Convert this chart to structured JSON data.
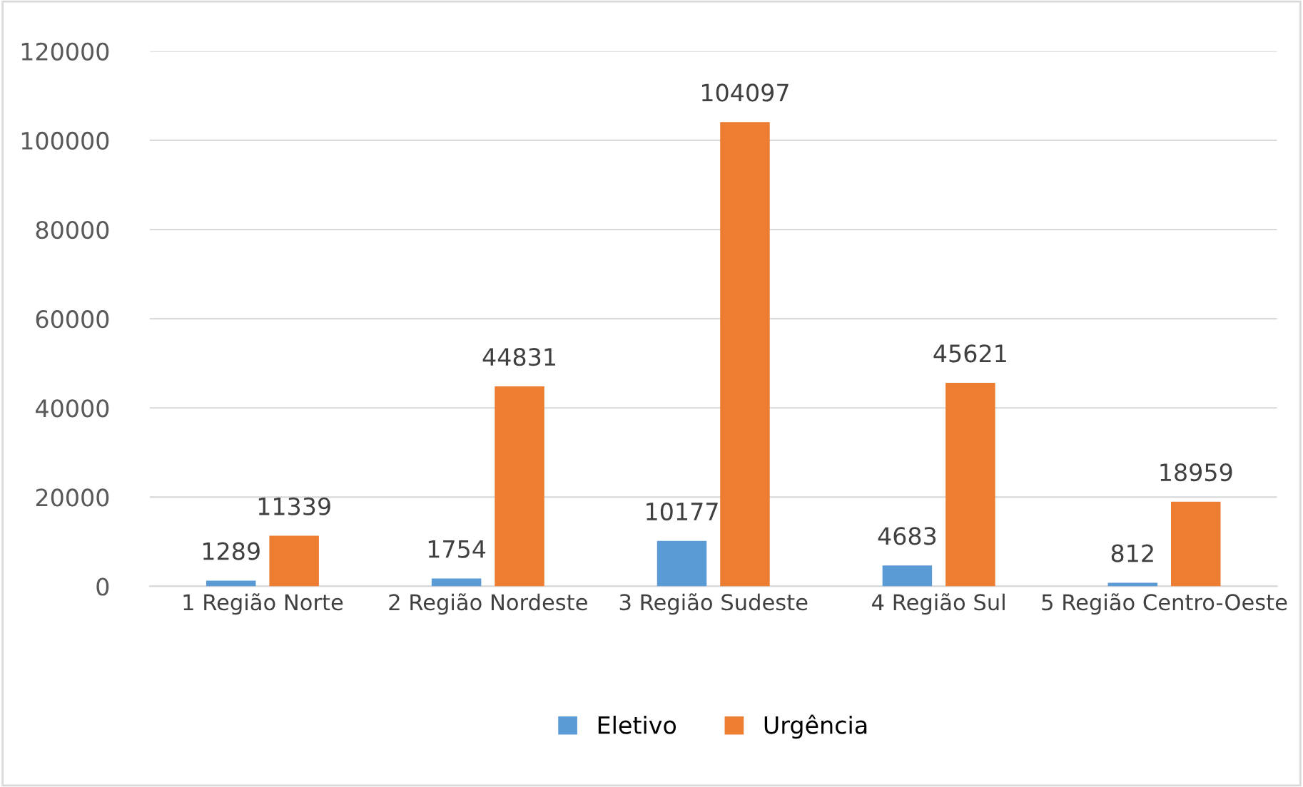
{
  "chart_data": {
    "type": "bar",
    "categories": [
      "1 Região Norte",
      "2 Região Nordeste",
      "3 Região Sudeste",
      "4 Região Sul",
      "5 Região Centro-Oeste"
    ],
    "series": [
      {
        "name": "Eletivo",
        "color": "#5b9bd5",
        "values": [
          1289,
          1754,
          10177,
          4683,
          812
        ]
      },
      {
        "name": "Urgência",
        "color": "#ed7d31",
        "values": [
          11339,
          44831,
          104097,
          45621,
          18959
        ]
      }
    ],
    "ylim": [
      0,
      120000
    ],
    "yticks": [
      0,
      20000,
      40000,
      60000,
      80000,
      100000,
      120000
    ],
    "grid": "y",
    "legend": "bottom",
    "data_labels": true
  }
}
